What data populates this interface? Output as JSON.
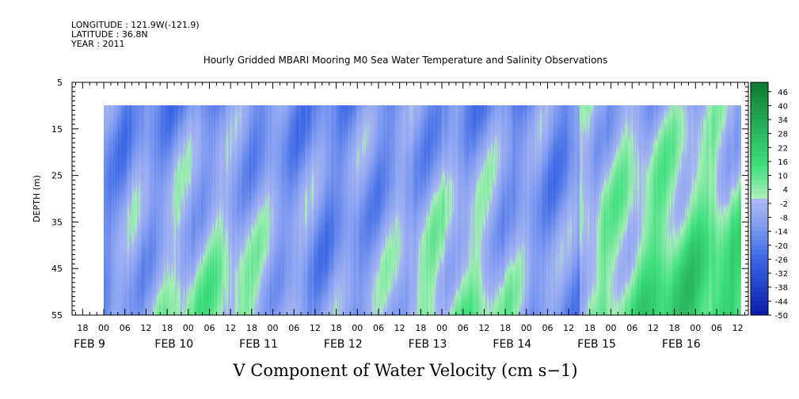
{
  "header": {
    "longitude": "LONGITUDE : 121.9W(-121.9)",
    "latitude": "LATITUDE : 36.8N",
    "year": "YEAR : 2011"
  },
  "chart_data": {
    "type": "heatmap",
    "title": "Hourly Gridded MBARI Mooring M0 Sea Water Temperature and Salinity Observations",
    "xlabel": "V Component of Water Velocity (cm s−1)",
    "ylabel": "DEPTH (m)",
    "yticks": [
      "5",
      "15",
      "25",
      "35",
      "45",
      "55"
    ],
    "ylim": [
      5,
      55
    ],
    "y_inverted": true,
    "xlim_hours": [
      -9,
      183
    ],
    "x_hour_ticks": [
      "18",
      "00",
      "06",
      "12",
      "18",
      "00",
      "06",
      "12",
      "18",
      "00",
      "06",
      "12",
      "18",
      "00",
      "06",
      "12",
      "18",
      "00",
      "06",
      "12",
      "18",
      "00",
      "06",
      "12",
      "18",
      "00",
      "06",
      "12",
      "18",
      "00",
      "06",
      "12"
    ],
    "x_date_labels": [
      "FEB  9",
      "FEB 10",
      "FEB 11",
      "FEB 12",
      "FEB 13",
      "FEB 14",
      "FEB 15",
      "FEB 16"
    ],
    "data_extent": {
      "x_hours": [
        0,
        181
      ],
      "depth": [
        10,
        55
      ]
    },
    "colorbar": {
      "labels": [
        "46",
        "40",
        "34",
        "28",
        "22",
        "16",
        "10",
        "4",
        "-2",
        "-8",
        "-14",
        "-20",
        "-26",
        "-32",
        "-38",
        "-44",
        "-50"
      ],
      "range": [
        -50,
        50
      ]
    },
    "colors": {
      "negative_dark": "#0a1ca8",
      "negative_mid": "#3a66e6",
      "negative_light": "#7e9cf0",
      "near_zero_blue": "#aab6f2",
      "near_zero_green": "#a8eeb8",
      "positive_mid": "#3ee07c",
      "positive_dark": "#0e7a32"
    }
  }
}
